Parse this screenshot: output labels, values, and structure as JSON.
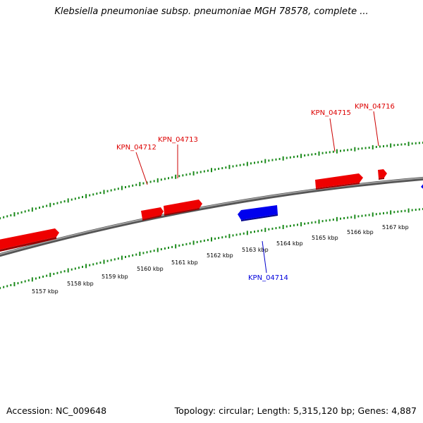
{
  "title": "Klebsiella pneumoniae subsp. pneumoniae MGH 78578, complete ...",
  "footer": {
    "accession": "Accession: NC_009648",
    "summary": "Topology: circular; Length: 5,315,120 bp; Genes: 4,887"
  },
  "ruler_labels": [
    "5157 kbp",
    "5158 kbp",
    "5159 kbp",
    "5160 kbp",
    "5161 kbp",
    "5162 kbp",
    "5163 kbp",
    "5164 kbp",
    "5165 kbp",
    "5166 kbp",
    "5167 kbp"
  ],
  "genes": [
    {
      "id": "KPN_04712",
      "strand": "forward",
      "color": "#dd0000"
    },
    {
      "id": "KPN_04713",
      "strand": "forward",
      "color": "#dd0000"
    },
    {
      "id": "KPN_04714",
      "strand": "reverse",
      "color": "#0000dd"
    },
    {
      "id": "KPN_04715",
      "strand": "forward",
      "color": "#dd0000"
    },
    {
      "id": "KPN_04716",
      "strand": "forward",
      "color": "#dd0000"
    }
  ],
  "colors": {
    "forward": "#ee0000",
    "reverse": "#0000ee",
    "ticks": "#1a8a1a",
    "backbone": "#7a7a7a"
  }
}
